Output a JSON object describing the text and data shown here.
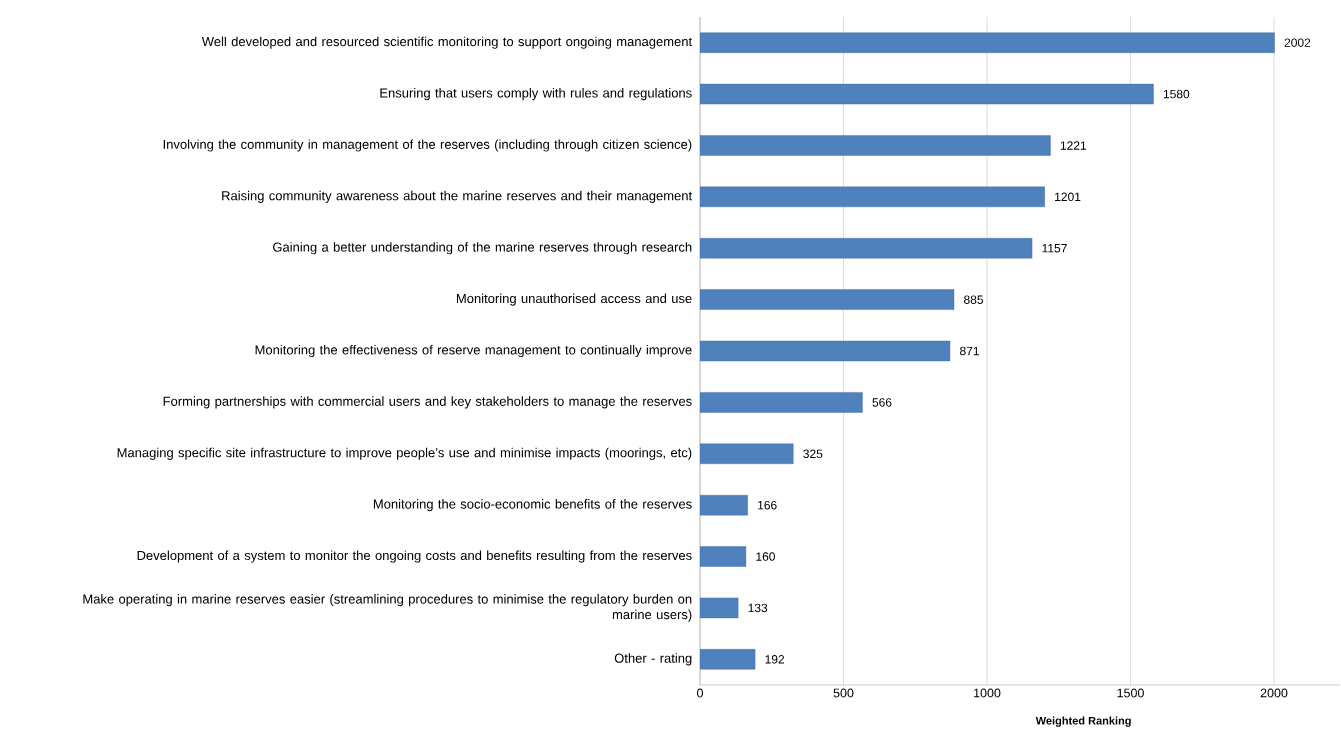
{
  "chart_data": {
    "type": "bar",
    "orientation": "horizontal",
    "xlabel": "Weighted Ranking",
    "categories": [
      "Well developed and resourced scientific monitoring to support ongoing management",
      "Ensuring that users comply with rules and regulations",
      "Involving the community in management of the reserves (including through citizen science)",
      "Raising community awareness about the marine reserves and their management",
      "Gaining a better understanding of the marine reserves through research",
      "Monitoring unauthorised access and use",
      "Monitoring the effectiveness of reserve management to continually improve",
      "Forming partnerships with commercial users and key stakeholders to manage the reserves",
      "Managing specific site infrastructure to improve people’s use and minimise impacts (moorings, etc)",
      "Monitoring the socio-economic benefits of the reserves",
      "Development of a system to monitor the ongoing costs and benefits resulting from the reserves",
      "Make operating in marine reserves easier (streamlining procedures to minimise the regulatory burden on marine users)",
      "Other - rating"
    ],
    "values": [
      2002,
      1580,
      1221,
      1201,
      1157,
      885,
      871,
      566,
      325,
      166,
      160,
      133,
      192
    ],
    "color": "#4f81bd",
    "xlim": [
      0,
      2230
    ],
    "xticks": [
      0,
      500,
      1000,
      1500,
      2000
    ],
    "grid": "x",
    "data_labels": true
  }
}
